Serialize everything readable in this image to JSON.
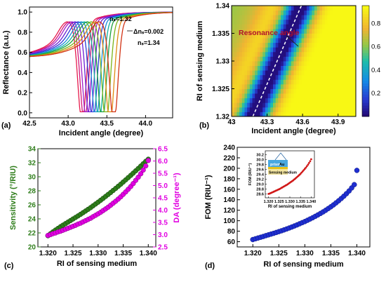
{
  "colors": {
    "sensitivity": "#2e7d1a",
    "da": "#e100e1",
    "fom": "#1f2fd0",
    "fom_inset": "#d01818",
    "resonance_line": "#ffffff"
  },
  "chart_data": [
    {
      "panel": "(a)",
      "type": "line",
      "xlabel": "Incident angle (degree)",
      "ylabel": "Reflectance (a.u.)",
      "xlim": [
        42.5,
        44.35
      ],
      "ylim": [
        -0.05,
        1.05
      ],
      "xticks": [
        "42.5",
        "43.0",
        "43.5",
        "44.0"
      ],
      "xtick_values": [
        42.5,
        43.0,
        43.5,
        44.0
      ],
      "yticks": [
        "0.0",
        "0.2",
        "0.4",
        "0.6",
        "0.8",
        "1.0"
      ],
      "ytick_values": [
        0.0,
        0.2,
        0.4,
        0.6,
        0.8,
        1.0
      ],
      "annotations": [
        "nₛ=1.32",
        "Δnₛ=0.002",
        "nₛ=1.34"
      ],
      "series": [
        {
          "ns": 1.32,
          "resonance_angle": 43.18,
          "min_reflectance": 0.01,
          "color": "#e6194b"
        },
        {
          "ns": 1.322,
          "resonance_angle": 43.21,
          "min_reflectance": 0.01,
          "color": "#d0147a"
        },
        {
          "ns": 1.324,
          "resonance_angle": 43.24,
          "min_reflectance": 0.01,
          "color": "#a01ec8"
        },
        {
          "ns": 1.326,
          "resonance_angle": 43.28,
          "min_reflectance": 0.01,
          "color": "#6a1ed2"
        },
        {
          "ns": 1.328,
          "resonance_angle": 43.32,
          "min_reflectance": 0.01,
          "color": "#2a3cd8"
        },
        {
          "ns": 1.33,
          "resonance_angle": 43.36,
          "min_reflectance": 0.01,
          "color": "#1a8cd8"
        },
        {
          "ns": 1.332,
          "resonance_angle": 43.4,
          "min_reflectance": 0.01,
          "color": "#12b0a0"
        },
        {
          "ns": 1.334,
          "resonance_angle": 43.44,
          "min_reflectance": 0.01,
          "color": "#1aa03c"
        },
        {
          "ns": 1.336,
          "resonance_angle": 43.49,
          "min_reflectance": 0.01,
          "color": "#7ab41a"
        },
        {
          "ns": 1.338,
          "resonance_angle": 43.54,
          "min_reflectance": 0.01,
          "color": "#e08a12"
        },
        {
          "ns": 1.34,
          "resonance_angle": 43.59,
          "min_reflectance": 0.01,
          "color": "#d23214"
        }
      ]
    },
    {
      "panel": "(b)",
      "type": "heatmap",
      "xlabel": "Incident angle (degree)",
      "ylabel": "RI of sensing medium",
      "xlim": [
        43.0,
        44.05
      ],
      "ylim": [
        1.32,
        1.34
      ],
      "xticks": [
        "43",
        "43.3",
        "43.6",
        "43.9"
      ],
      "xtick_values": [
        43.0,
        43.3,
        43.6,
        43.9
      ],
      "yticks": [
        "1.32",
        "1.325",
        "1.33",
        "1.335",
        "1.34"
      ],
      "ytick_values": [
        1.32,
        1.325,
        1.33,
        1.335,
        1.34
      ],
      "colorbar_ticks": [
        "0.2",
        "0.4",
        "0.6",
        "0.8"
      ],
      "colorbar_tick_values": [
        0.2,
        0.4,
        0.6,
        0.8
      ],
      "colorbar_range": [
        0.0,
        0.95
      ],
      "annotation": "Resonance angle",
      "resonance_line": [
        [
          43.18,
          1.32
        ],
        [
          43.59,
          1.34
        ]
      ]
    },
    {
      "panel": "(c)",
      "type": "scatter",
      "xlabel": "RI of sensing medium",
      "ylabel_left": "Sensitivity (°/RIU)",
      "ylabel_right": "DA (degree⁻¹)",
      "xlim": [
        1.318,
        1.3415
      ],
      "ylim_left": [
        20,
        34
      ],
      "ylim_right": [
        2.5,
        6.5
      ],
      "xticks": [
        "1.320",
        "1.325",
        "1.330",
        "1.335",
        "1.340"
      ],
      "xtick_values": [
        1.32,
        1.325,
        1.33,
        1.335,
        1.34
      ],
      "yticks_left": [
        "20",
        "22",
        "24",
        "26",
        "28",
        "30",
        "32",
        "34"
      ],
      "ytick_values_left": [
        20,
        22,
        24,
        26,
        28,
        30,
        32,
        34
      ],
      "yticks_right": [
        "2.5",
        "3.0",
        "3.5",
        "4.0",
        "4.5",
        "5.0",
        "5.5",
        "6.0",
        "6.5"
      ],
      "ytick_values_right": [
        2.5,
        3.0,
        3.5,
        4.0,
        4.5,
        5.0,
        5.5,
        6.0,
        6.5
      ],
      "x": [
        1.32,
        1.3205,
        1.321,
        1.3215,
        1.322,
        1.3225,
        1.323,
        1.3235,
        1.324,
        1.3245,
        1.325,
        1.3255,
        1.326,
        1.3265,
        1.327,
        1.3275,
        1.328,
        1.3285,
        1.329,
        1.3295,
        1.33,
        1.3305,
        1.331,
        1.3315,
        1.332,
        1.3325,
        1.333,
        1.3335,
        1.334,
        1.3345,
        1.335,
        1.3355,
        1.336,
        1.3365,
        1.337,
        1.3375,
        1.338,
        1.3385,
        1.339,
        1.3395,
        1.34
      ],
      "series": [
        {
          "axis": "left",
          "values": [
            21.6,
            21.88,
            22.14,
            22.4,
            22.64,
            22.88,
            23.1,
            23.32,
            23.54,
            23.76,
            23.98,
            24.2,
            24.42,
            24.65,
            24.88,
            25.12,
            25.36,
            25.6,
            25.86,
            26.12,
            26.38,
            26.65,
            26.92,
            27.2,
            27.48,
            27.76,
            28.05,
            28.34,
            28.64,
            28.94,
            29.25,
            29.56,
            29.88,
            30.2,
            30.52,
            30.85,
            31.18,
            31.52,
            31.86,
            32.2,
            32.5
          ]
        },
        {
          "axis": "right",
          "values": [
            2.97,
            3.0,
            3.04,
            3.07,
            3.11,
            3.14,
            3.18,
            3.22,
            3.26,
            3.3,
            3.34,
            3.38,
            3.43,
            3.47,
            3.52,
            3.57,
            3.62,
            3.67,
            3.73,
            3.79,
            3.85,
            3.91,
            3.98,
            4.05,
            4.12,
            4.2,
            4.28,
            4.36,
            4.45,
            4.54,
            4.64,
            4.74,
            4.85,
            4.96,
            5.08,
            5.21,
            5.34,
            5.48,
            5.63,
            5.8,
            6.02
          ]
        }
      ]
    },
    {
      "panel": "(d)",
      "type": "scatter",
      "xlabel": "RI of sensing medium",
      "ylabel": "FOM (RIU⁻¹)",
      "xlim": [
        1.317,
        1.3425
      ],
      "ylim": [
        50,
        240
      ],
      "xticks": [
        "1.320",
        "1.325",
        "1.330",
        "1.335",
        "1.340"
      ],
      "xtick_values": [
        1.32,
        1.325,
        1.33,
        1.335,
        1.34
      ],
      "yticks": [
        "60",
        "80",
        "100",
        "120",
        "140",
        "160",
        "180",
        "200",
        "220",
        "240"
      ],
      "ytick_values": [
        60,
        80,
        100,
        120,
        140,
        160,
        180,
        200,
        220,
        240
      ],
      "x": [
        1.32,
        1.3205,
        1.321,
        1.3215,
        1.322,
        1.3225,
        1.323,
        1.3235,
        1.324,
        1.3245,
        1.325,
        1.3255,
        1.326,
        1.3265,
        1.327,
        1.3275,
        1.328,
        1.3285,
        1.329,
        1.3295,
        1.33,
        1.3305,
        1.331,
        1.3315,
        1.332,
        1.3325,
        1.333,
        1.3335,
        1.334,
        1.3345,
        1.335,
        1.3355,
        1.336,
        1.3365,
        1.337,
        1.3375,
        1.338,
        1.3385,
        1.339,
        1.3395,
        1.34
      ],
      "values": [
        64.0,
        65.5,
        67.0,
        68.5,
        70.0,
        71.5,
        73.0,
        74.5,
        76.0,
        77.6,
        79.2,
        80.8,
        82.5,
        84.3,
        86.1,
        88.0,
        90.0,
        92.0,
        94.1,
        96.3,
        98.5,
        100.8,
        103.2,
        105.7,
        108.3,
        111.0,
        113.8,
        116.8,
        119.9,
        123.2,
        126.6,
        130.2,
        134.0,
        138.0,
        142.3,
        146.8,
        151.6,
        156.8,
        162.5,
        168.8,
        196.0
      ],
      "inset": {
        "xlabel": "RI of sensing medium",
        "ylabel": "FOM (RIU⁻¹)",
        "xlim": [
          1.3185,
          1.3415
        ],
        "ylim": [
          28.45,
          30.35
        ],
        "xticks": [
          "1.320",
          "1.325",
          "1.330",
          "1.335",
          "1.340"
        ],
        "xtick_values": [
          1.32,
          1.325,
          1.33,
          1.335,
          1.34
        ],
        "yticks": [
          "28.6",
          "28.8",
          "29.0",
          "29.2",
          "29.4",
          "29.6",
          "29.8",
          "30.0",
          "30.2"
        ],
        "ytick_values": [
          28.6,
          28.8,
          29.0,
          29.2,
          29.4,
          29.6,
          29.8,
          30.0,
          30.2
        ],
        "labels": [
          "prism",
          "Au",
          "Sensing medium"
        ],
        "x": [
          1.32,
          1.3205,
          1.321,
          1.3215,
          1.322,
          1.3225,
          1.323,
          1.3235,
          1.324,
          1.3245,
          1.325,
          1.3255,
          1.326,
          1.3265,
          1.327,
          1.3275,
          1.328,
          1.3285,
          1.329,
          1.3295,
          1.33,
          1.3305,
          1.331,
          1.3315,
          1.332,
          1.3325,
          1.333,
          1.3335,
          1.334,
          1.3345,
          1.335,
          1.3355,
          1.336,
          1.3365,
          1.337,
          1.3375,
          1.338,
          1.3385,
          1.339,
          1.3395,
          1.34
        ],
        "values": [
          28.61,
          28.62,
          28.64,
          28.66,
          28.68,
          28.7,
          28.72,
          28.74,
          28.76,
          28.78,
          28.8,
          28.82,
          28.85,
          28.87,
          28.9,
          28.92,
          28.95,
          28.97,
          29.0,
          29.03,
          29.06,
          29.09,
          29.12,
          29.15,
          29.19,
          29.22,
          29.26,
          29.3,
          29.34,
          29.38,
          29.42,
          29.47,
          29.52,
          29.57,
          29.62,
          29.67,
          29.73,
          29.79,
          29.86,
          29.93,
          30.01
        ]
      }
    }
  ]
}
